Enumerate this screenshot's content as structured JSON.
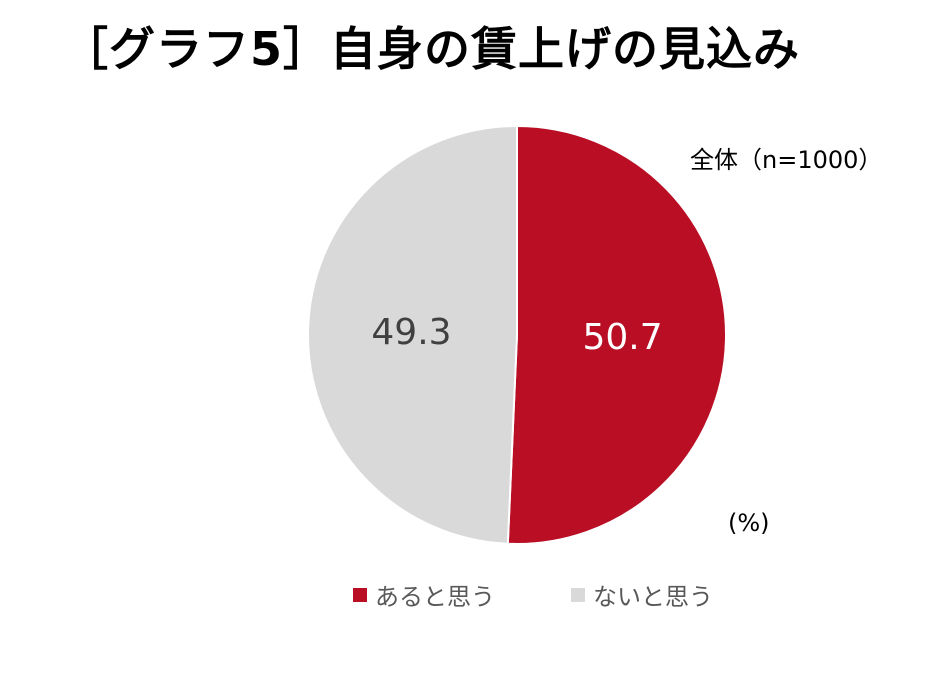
{
  "title": "［グラフ5］自身の賃上げの見込み",
  "sample": "全体（n=1000）",
  "unit": "(%)",
  "colors": {
    "yes": "#b90e24",
    "no": "#d9d9d9",
    "yes_label_text": "#ffffff",
    "no_label_text": "#404040"
  },
  "chart_data": {
    "type": "pie",
    "title": "［グラフ5］自身の賃上げの見込み",
    "categories": [
      "あると思う",
      "ないと思う"
    ],
    "values": [
      50.7,
      49.3
    ],
    "labels": [
      "50.7",
      "49.3"
    ],
    "colors": [
      "#b90e24",
      "#d9d9d9"
    ],
    "label_colors": [
      "#ffffff",
      "#404040"
    ],
    "start_angle_deg": 0,
    "direction": "clockwise",
    "legend_position": "bottom"
  },
  "legend": [
    {
      "label": "あると思う",
      "color": "#b90e24"
    },
    {
      "label": "ないと思う",
      "color": "#d9d9d9"
    }
  ]
}
